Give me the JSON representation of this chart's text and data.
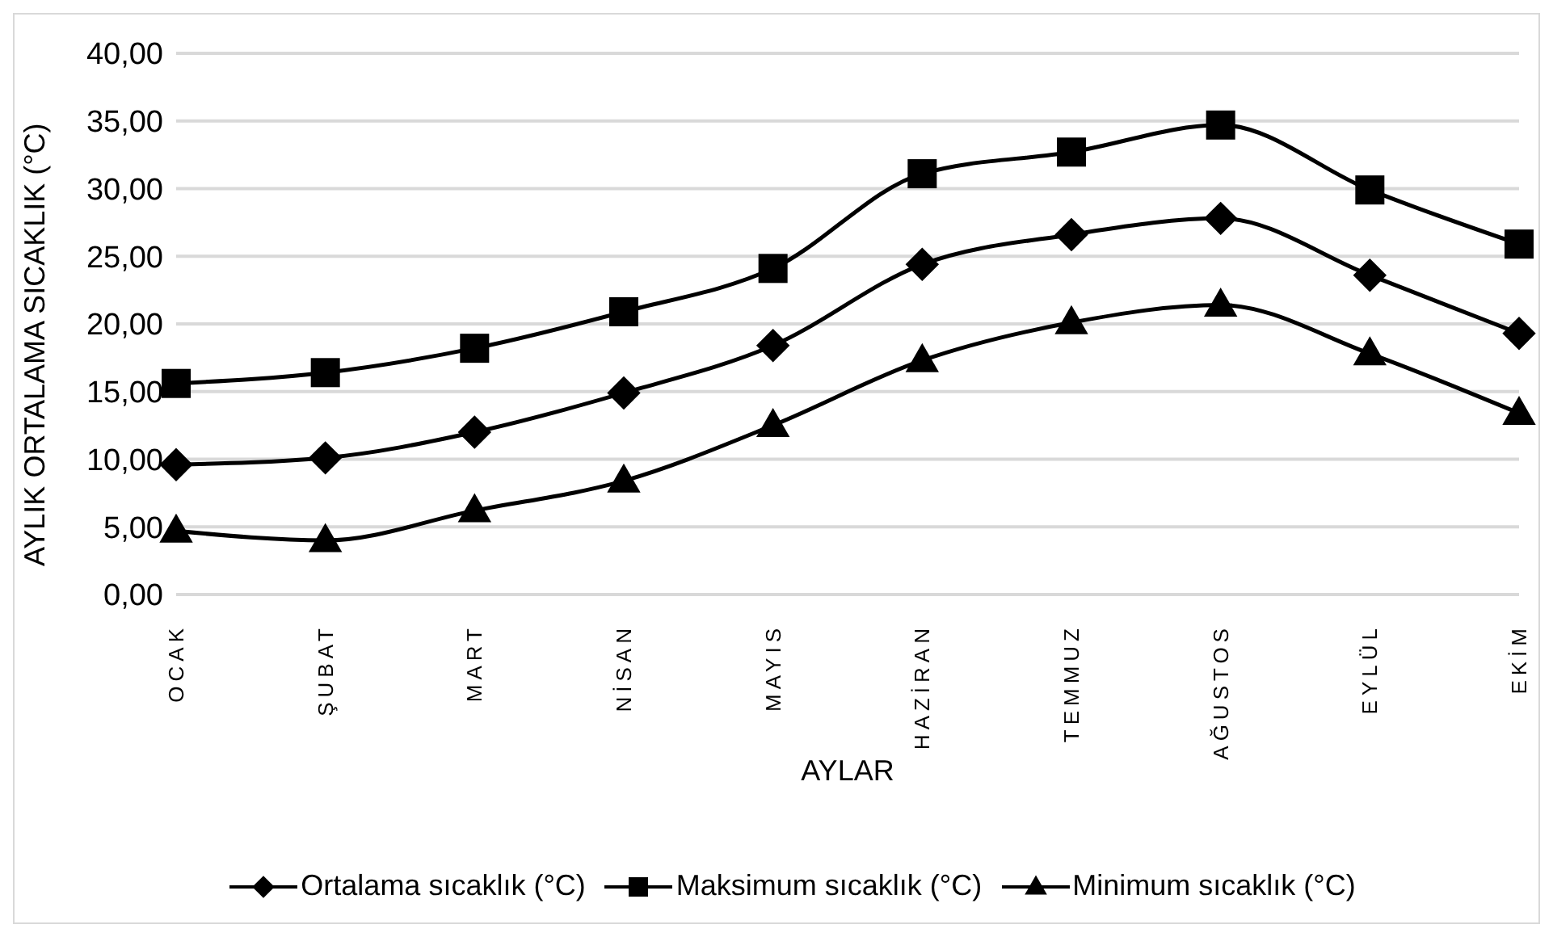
{
  "chart_data": {
    "type": "line",
    "xlabel": "AYLAR",
    "ylabel": "AYLIK ORTALAMA SICAKLIK (°C)",
    "categories": [
      "OCAK",
      "ŞUBAT",
      "MART",
      "NİSAN",
      "MAYIS",
      "HAZİRAN",
      "TEMMUZ",
      "AĞUSTOS",
      "EYLÜL",
      "EKİM"
    ],
    "series": [
      {
        "name": "Ortalama sıcaklık (°C)",
        "color": "#000000",
        "marker": "diamond",
        "values": [
          9.6,
          10.1,
          12.0,
          14.9,
          18.4,
          24.4,
          26.6,
          27.8,
          23.6,
          19.3
        ]
      },
      {
        "name": "Maksimum sıcaklık (°C)",
        "color": "#000000",
        "marker": "square",
        "values": [
          15.6,
          16.4,
          18.2,
          20.9,
          24.1,
          31.1,
          32.7,
          34.7,
          29.9,
          25.9
        ]
      },
      {
        "name": "Minimum sıcaklık (°C)",
        "color": "#000000",
        "marker": "triangle",
        "values": [
          4.7,
          4.0,
          6.2,
          8.4,
          12.5,
          17.3,
          20.1,
          21.4,
          17.8,
          13.4
        ]
      }
    ],
    "ylim": [
      0,
      40
    ],
    "yticks": [
      {
        "value": 0,
        "label": "0,00"
      },
      {
        "value": 5,
        "label": "5,00"
      },
      {
        "value": 10,
        "label": "10,00"
      },
      {
        "value": 15,
        "label": "15,00"
      },
      {
        "value": 20,
        "label": "20,00"
      },
      {
        "value": 25,
        "label": "25,00"
      },
      {
        "value": 30,
        "label": "30,00"
      },
      {
        "value": 35,
        "label": "35,00"
      },
      {
        "value": 40,
        "label": "40,00"
      }
    ],
    "grid": "y",
    "legend": "bottom",
    "line_style": "solid"
  }
}
